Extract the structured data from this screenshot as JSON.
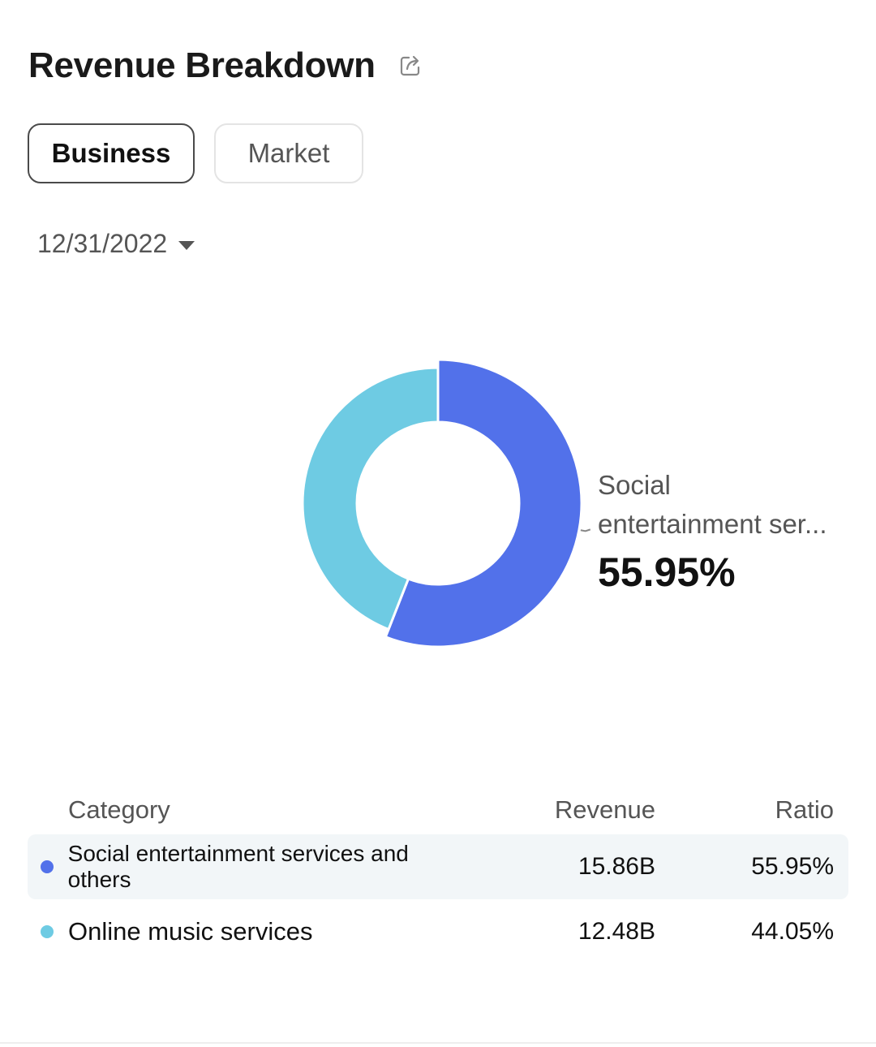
{
  "header": {
    "title": "Revenue Breakdown",
    "share_icon": "share-icon"
  },
  "tabs": [
    {
      "label": "Business",
      "active": true
    },
    {
      "label": "Market",
      "active": false
    }
  ],
  "date_filter": {
    "value": "12/31/2022"
  },
  "callout": {
    "name_line1": "Social",
    "name_line2": "entertainment ser...",
    "percent": "55.95%"
  },
  "table": {
    "headers": {
      "category": "Category",
      "revenue": "Revenue",
      "ratio": "Ratio"
    },
    "rows": [
      {
        "category": "Social entertainment services and others",
        "revenue": "15.86B",
        "ratio": "55.95%",
        "color": "#5271ea"
      },
      {
        "category": "Online music services",
        "revenue": "12.48B",
        "ratio": "44.05%",
        "color": "#6ecbe3"
      }
    ]
  },
  "chart_data": {
    "type": "pie",
    "style": "donut",
    "categories": [
      "Social entertainment services and others",
      "Online music services"
    ],
    "values": [
      55.95,
      44.05
    ],
    "colors": [
      "#5271ea",
      "#6ecbe3"
    ],
    "highlighted": "Social entertainment services and others"
  }
}
